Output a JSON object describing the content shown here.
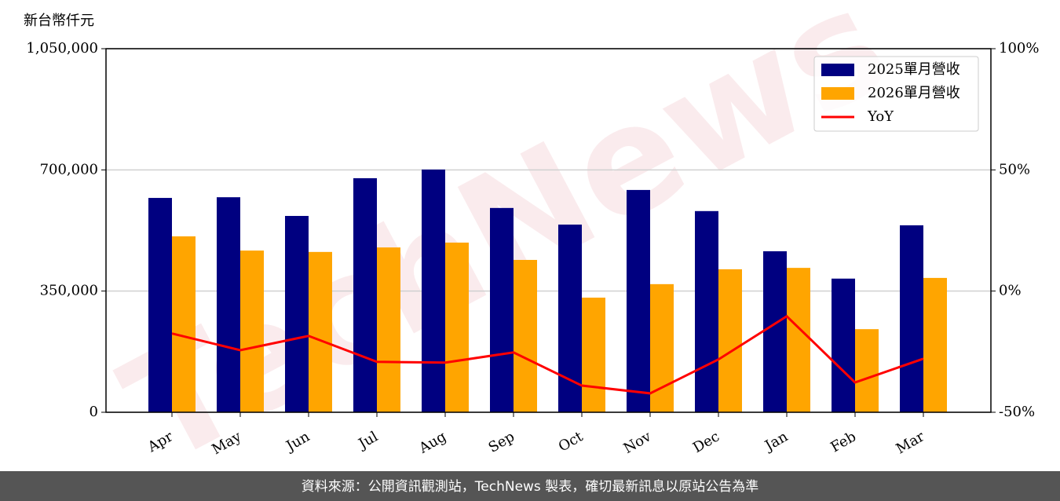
{
  "chart_data": {
    "type": "bar_line",
    "y_label": "新台幣仟元",
    "watermark": "TechNews",
    "footer": "資料來源：公開資訊觀測站，TechNews 製表，確切最新訊息以原站公告為準",
    "categories": [
      "Apr",
      "May",
      "Jun",
      "Jul",
      "Aug",
      "Sep",
      "Oct",
      "Nov",
      "Dec",
      "Jan",
      "Feb",
      "Mar"
    ],
    "series": [
      {
        "name": "2025單月營收",
        "color": "#000080",
        "type": "bar",
        "values": [
          619000,
          621000,
          567000,
          676000,
          701000,
          590000,
          542000,
          642000,
          581000,
          465000,
          386000,
          540000
        ]
      },
      {
        "name": "2026單月營收",
        "color": "#ffa500",
        "type": "bar",
        "values": [
          508000,
          467000,
          463000,
          476000,
          490000,
          440000,
          331000,
          370000,
          413000,
          417000,
          240000,
          388000
        ]
      },
      {
        "name": "YoY",
        "color": "#ff0000",
        "type": "line",
        "axis": "y2",
        "values": [
          -17.5,
          -24.4,
          -18.5,
          -29.2,
          -29.5,
          -25.3,
          -39,
          -42.2,
          -28.2,
          -10.4,
          -37.7,
          -27.9
        ]
      }
    ],
    "ylim": [
      0,
      1050000
    ],
    "yticks": [
      0,
      {
        "value": 350000,
        "label": "350,000"
      },
      {
        "value": 700000,
        "label": "700,000"
      },
      {
        "value": 1050000,
        "label": "1,050,000"
      }
    ],
    "y2lim": [
      -50,
      100
    ],
    "y2ticks": [
      {
        "value": -50,
        "label": "-50%"
      },
      {
        "value": 0,
        "label": "0%"
      },
      {
        "value": 50,
        "label": "50%"
      },
      {
        "value": 100,
        "label": "100%"
      }
    ],
    "grid": true,
    "legend": "upper right"
  }
}
